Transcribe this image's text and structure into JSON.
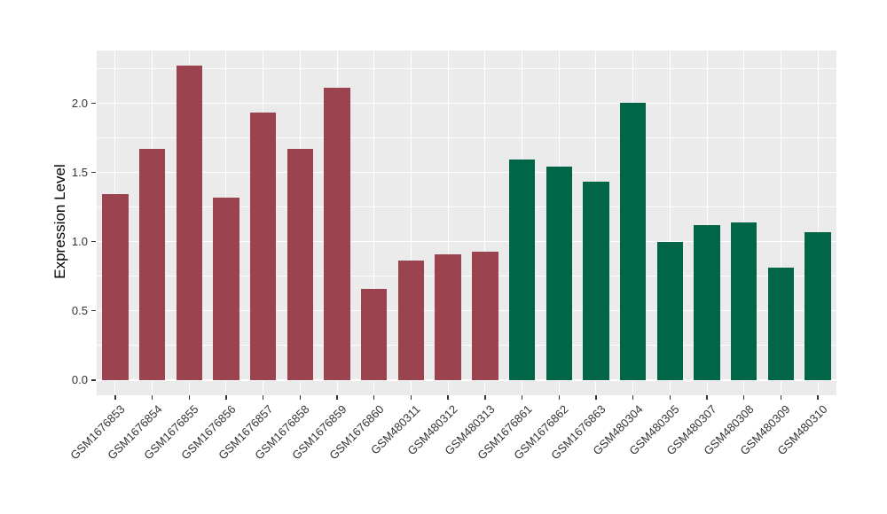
{
  "chart_data": {
    "type": "bar",
    "title": "",
    "xlabel": "",
    "ylabel": "Expression Level",
    "categories": [
      "GSM1676853",
      "GSM1676854",
      "GSM1676855",
      "GSM1676856",
      "GSM1676857",
      "GSM1676858",
      "GSM1676859",
      "GSM1676860",
      "GSM480311",
      "GSM480312",
      "GSM480313",
      "GSM1676861",
      "GSM1676862",
      "GSM1676863",
      "GSM480304",
      "GSM480305",
      "GSM480307",
      "GSM480308",
      "GSM480309",
      "GSM480310"
    ],
    "values": [
      1.34,
      1.67,
      2.27,
      1.32,
      1.93,
      1.67,
      2.11,
      0.66,
      0.86,
      0.91,
      0.93,
      1.59,
      1.54,
      1.43,
      2.0,
      1.0,
      1.12,
      1.14,
      0.81,
      1.07
    ],
    "bar_group_index": [
      0,
      0,
      0,
      0,
      0,
      0,
      0,
      0,
      0,
      0,
      0,
      1,
      1,
      1,
      1,
      1,
      1,
      1,
      1,
      1
    ],
    "group_colors": [
      "#9B4450",
      "#016647"
    ],
    "ylim": [
      -0.11,
      2.38
    ],
    "ytick_values": [
      0.0,
      0.5,
      1.0,
      1.5,
      2.0
    ],
    "ytick_labels": [
      "0.0",
      "0.5",
      "1.0",
      "1.5",
      "2.0"
    ],
    "yminor_values": [
      0.25,
      0.75,
      1.25,
      1.75,
      2.25
    ],
    "grid": "major and minor horizontal, vertical at category centers",
    "legend_position": "none",
    "panel_background": "#EBEBEB",
    "gridline_color": "#FFFFFF",
    "axis_text_color": "#333333",
    "axis_title_color": "#000000",
    "bar_width_fraction": 0.705
  }
}
